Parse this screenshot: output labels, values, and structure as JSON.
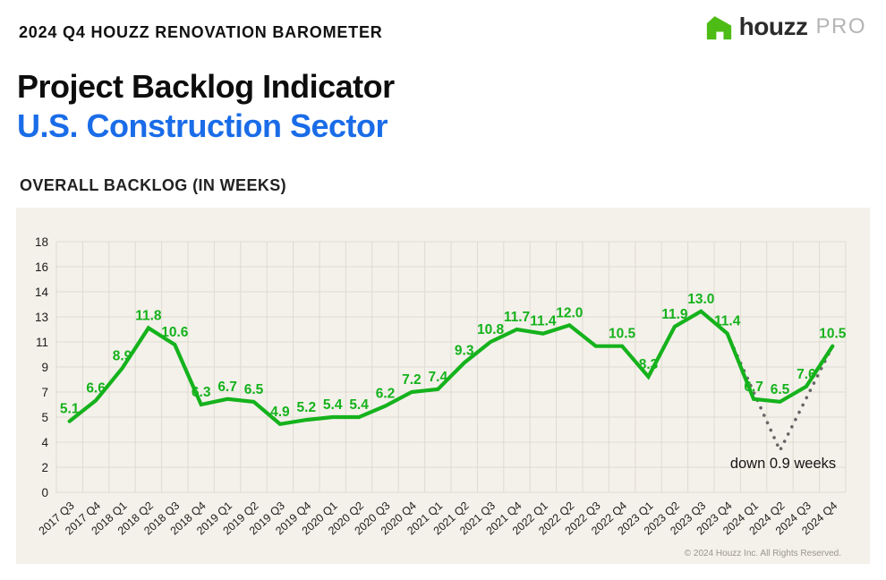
{
  "header": {
    "kicker": "2024 Q4 HOUZZ RENOVATION BAROMETER",
    "title_line1": "Project Backlog Indicator",
    "title_line2": "U.S. Construction Sector",
    "logo": {
      "brand": "houzz",
      "suffix": "PRO",
      "icon": "houzz-house-icon"
    }
  },
  "section_label": "OVERALL BACKLOG (IN WEEKS)",
  "chart_data": {
    "type": "line",
    "title": "OVERALL BACKLOG (IN WEEKS)",
    "categories": [
      "2017 Q3",
      "2017 Q4",
      "2018 Q1",
      "2018 Q2",
      "2018 Q3",
      "2018 Q4",
      "2019 Q1",
      "2019 Q2",
      "2019 Q3",
      "2019 Q4",
      "2020 Q1",
      "2020 Q2",
      "2020 Q3",
      "2020 Q4",
      "2021 Q1",
      "2021 Q2",
      "2021 Q3",
      "2021 Q4",
      "2022 Q1",
      "2022 Q2",
      "2022 Q3",
      "2022 Q4",
      "2023 Q1",
      "2023 Q2",
      "2023 Q3",
      "2023 Q4",
      "2024 Q1",
      "2024 Q2",
      "2024 Q3",
      "2024 Q4"
    ],
    "series": [
      {
        "name": "Overall backlog (weeks)",
        "values": [
          5.1,
          6.6,
          8.9,
          11.8,
          10.6,
          6.3,
          6.7,
          6.5,
          4.9,
          5.2,
          5.4,
          5.4,
          6.2,
          7.2,
          7.4,
          9.3,
          10.8,
          11.7,
          11.4,
          12.0,
          10.5,
          10.5,
          8.3,
          11.9,
          13.0,
          11.4,
          6.7,
          6.5,
          7.6,
          10.5
        ],
        "point_labels": [
          "5.1",
          "6.6",
          "8.9",
          "11.8",
          "10.6",
          "6.3",
          "6.7",
          "6.5",
          "4.9",
          "5.2",
          "5.4",
          "5.4",
          "6.2",
          "7.2",
          "7.4",
          "9.3",
          "10.8",
          "11.7",
          "11.4",
          "12.0",
          "",
          "10.5",
          "8.3",
          "11.9",
          "13.0",
          "11.4",
          "6.7",
          "6.5",
          "7.6",
          "10.5"
        ]
      }
    ],
    "dotted_overlay": {
      "description": "dotted V-shaped guide from 2023 Q4 peak to 2024 Q4",
      "points": [
        {
          "category": "2023 Q4",
          "value": 11.4
        },
        {
          "category": "2024 Q2",
          "value": 3.0
        },
        {
          "category": "2024 Q4",
          "value": 10.5
        }
      ]
    },
    "annotation": "down 0.9 weeks",
    "y_axis": {
      "min": 0,
      "max": 18,
      "tick_labels_bottom_to_top": [
        "0",
        "2",
        "4",
        "5",
        "7",
        "9",
        "11",
        "13",
        "14",
        "16",
        "18"
      ]
    },
    "xlabel": "",
    "ylabel": "weeks",
    "grid": true,
    "legend": "none"
  },
  "footer": "© 2024 Houzz Inc. All Rights Reserved.",
  "colors": {
    "line_green": "#15b21c",
    "logo_green": "#4dbc15",
    "title_blue": "#1a6ce8",
    "panel_background": "#f4f1ea",
    "gridline": "#dedbd1",
    "axis_text": "#1c1c1c",
    "dotted_overlay": "#666666",
    "annotation_text": "#151515",
    "footer_text": "#9a968c"
  }
}
